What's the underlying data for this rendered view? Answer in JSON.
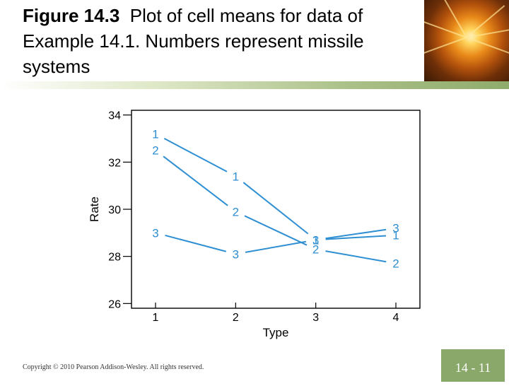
{
  "title": {
    "figure_label": "Figure 14.3",
    "text": "Plot of cell means for data of Example 14.1. Numbers represent missile systems"
  },
  "footer": {
    "copyright": "Copyright © 2010 Pearson Addison-Wesley. All rights reserved.",
    "slide_number": "14 - 11"
  },
  "colors": {
    "line": "#2f8fd3",
    "accent_green": "#8aa86a"
  },
  "chart_data": {
    "type": "line",
    "xlabel": "Type",
    "ylabel": "Rate",
    "categories": [
      "1",
      "2",
      "3",
      "4"
    ],
    "x": [
      1,
      2,
      3,
      4
    ],
    "xlim": [
      0.7,
      4.3
    ],
    "ylim": [
      25.8,
      34.2
    ],
    "yticks": [
      26,
      28,
      30,
      32,
      34
    ],
    "series": [
      {
        "name": "1",
        "values": [
          33.2,
          31.4,
          28.7,
          28.9
        ]
      },
      {
        "name": "2",
        "values": [
          32.5,
          29.9,
          28.3,
          27.7
        ]
      },
      {
        "name": "3",
        "values": [
          29.0,
          28.1,
          28.7,
          29.2
        ]
      }
    ],
    "grid": false
  }
}
